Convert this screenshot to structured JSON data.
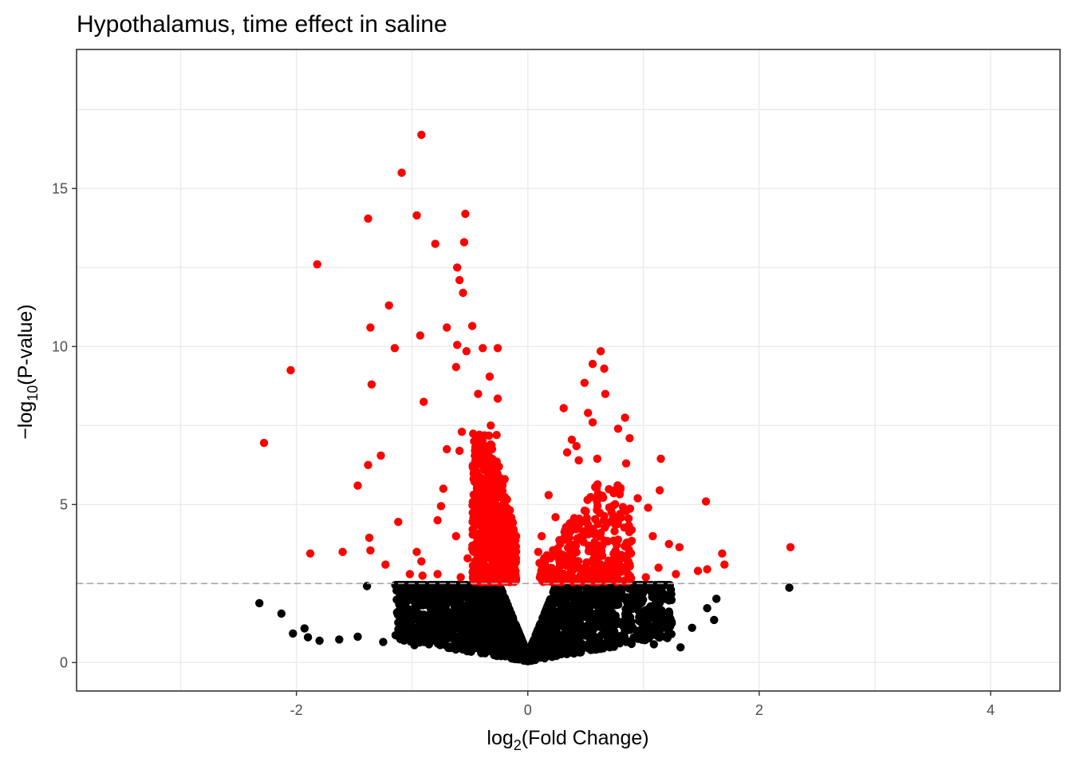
{
  "chart_data": {
    "type": "scatter",
    "title": "Hypothalamus, time effect in saline",
    "xlabel": {
      "prefix": "log",
      "subscript": "2",
      "suffix": "(Fold Change)"
    },
    "ylabel": {
      "prefix": "−log",
      "subscript": "10",
      "suffix": "(P-value)"
    },
    "xlim": [
      -3.9,
      4.6
    ],
    "ylim": [
      -0.9,
      19.4
    ],
    "x_ticks": [
      -2,
      0,
      2,
      4
    ],
    "y_ticks": [
      0,
      5,
      10,
      15
    ],
    "x_tick_labels": [
      "-2",
      "0",
      "2",
      "4"
    ],
    "y_tick_labels": [
      "0",
      "5",
      "10",
      "15"
    ],
    "grid": true,
    "legend": "none",
    "threshold_y": 2.5,
    "colors": {
      "significant": "#ff0000",
      "not_significant": "#000000",
      "threshold": "#a6a6a6",
      "grid": "#ebebeb",
      "panel_border": "#333333"
    },
    "series": [
      {
        "role": "significant",
        "points": [
          [
            -0.92,
            16.7
          ],
          [
            -1.09,
            15.5
          ],
          [
            -0.54,
            14.2
          ],
          [
            -0.96,
            14.15
          ],
          [
            -1.38,
            14.05
          ],
          [
            -0.55,
            13.3
          ],
          [
            -0.8,
            13.25
          ],
          [
            -1.82,
            12.6
          ],
          [
            -0.61,
            12.5
          ],
          [
            -0.59,
            12.1
          ],
          [
            -0.56,
            11.7
          ],
          [
            -1.2,
            11.3
          ],
          [
            -0.48,
            10.65
          ],
          [
            -1.36,
            10.6
          ],
          [
            -0.7,
            10.6
          ],
          [
            -0.93,
            10.35
          ],
          [
            -0.61,
            10.05
          ],
          [
            -1.15,
            9.95
          ],
          [
            -0.39,
            9.95
          ],
          [
            -0.26,
            9.95
          ],
          [
            -0.53,
            9.85
          ],
          [
            -0.62,
            9.35
          ],
          [
            -2.05,
            9.25
          ],
          [
            -0.33,
            9.05
          ],
          [
            -1.35,
            8.8
          ],
          [
            -0.43,
            8.5
          ],
          [
            -0.26,
            8.35
          ],
          [
            -0.9,
            8.25
          ],
          [
            -0.32,
            7.5
          ],
          [
            -0.27,
            7.2
          ],
          [
            -0.57,
            7.3
          ],
          [
            -2.28,
            6.95
          ],
          [
            -0.42,
            6.7
          ],
          [
            -0.59,
            6.7
          ],
          [
            -0.7,
            6.75
          ],
          [
            -1.27,
            6.55
          ],
          [
            -1.38,
            6.25
          ],
          [
            -1.47,
            5.6
          ],
          [
            -0.73,
            5.5
          ],
          [
            -0.75,
            4.95
          ],
          [
            -0.78,
            4.5
          ],
          [
            -1.12,
            4.45
          ],
          [
            -1.37,
            3.95
          ],
          [
            -1.36,
            3.55
          ],
          [
            -1.88,
            3.45
          ],
          [
            -1.6,
            3.5
          ],
          [
            -0.96,
            3.5
          ],
          [
            -0.92,
            3.2
          ],
          [
            -1.23,
            3.1
          ],
          [
            -0.78,
            2.8
          ],
          [
            -0.91,
            2.75
          ],
          [
            -1.02,
            2.8
          ],
          [
            -0.58,
            2.7
          ],
          [
            -0.45,
            2.9
          ],
          [
            0.63,
            9.85
          ],
          [
            0.56,
            9.45
          ],
          [
            0.66,
            9.3
          ],
          [
            0.49,
            8.85
          ],
          [
            0.67,
            8.5
          ],
          [
            0.31,
            8.05
          ],
          [
            0.52,
            7.9
          ],
          [
            0.56,
            7.6
          ],
          [
            0.84,
            7.75
          ],
          [
            0.78,
            7.4
          ],
          [
            0.38,
            7.05
          ],
          [
            0.42,
            6.85
          ],
          [
            0.88,
            7.1
          ],
          [
            0.34,
            6.65
          ],
          [
            0.44,
            6.4
          ],
          [
            0.6,
            6.45
          ],
          [
            1.15,
            6.45
          ],
          [
            0.85,
            6.3
          ],
          [
            1.14,
            5.45
          ],
          [
            1.54,
            5.1
          ],
          [
            0.95,
            5.2
          ],
          [
            1.04,
            4.9
          ],
          [
            0.59,
            5.2
          ],
          [
            1.08,
            4.0
          ],
          [
            1.22,
            3.75
          ],
          [
            1.31,
            3.65
          ],
          [
            1.68,
            3.45
          ],
          [
            1.7,
            3.1
          ],
          [
            2.27,
            3.65
          ],
          [
            1.55,
            2.95
          ],
          [
            1.47,
            2.9
          ],
          [
            1.28,
            2.8
          ],
          [
            1.13,
            3.0
          ],
          [
            0.09,
            3.5
          ],
          [
            0.12,
            4.0
          ],
          [
            0.18,
            5.3
          ],
          [
            0.24,
            4.6
          ],
          [
            0.48,
            4.0
          ],
          [
            0.76,
            3.4
          ],
          [
            0.88,
            3.1
          ],
          [
            1.02,
            2.7
          ],
          [
            -0.25,
            6.2
          ],
          [
            -0.2,
            5.8
          ],
          [
            -0.31,
            5.6
          ],
          [
            -0.36,
            5.1
          ],
          [
            -0.22,
            4.7
          ],
          [
            -0.18,
            4.2
          ],
          [
            -0.4,
            4.3
          ],
          [
            -0.28,
            3.8
          ],
          [
            -0.48,
            3.6
          ],
          [
            -0.12,
            3.2
          ],
          [
            -0.35,
            3.0
          ],
          [
            -0.52,
            3.3
          ],
          [
            -0.15,
            2.8
          ],
          [
            -0.62,
            4.0
          ],
          [
            -0.44,
            5.4
          ]
        ]
      },
      {
        "role": "not_significant",
        "points": [
          [
            -2.32,
            1.88
          ],
          [
            -2.13,
            1.55
          ],
          [
            -2.03,
            0.92
          ],
          [
            -1.93,
            1.08
          ],
          [
            -1.9,
            0.8
          ],
          [
            -1.8,
            0.69
          ],
          [
            -1.63,
            0.73
          ],
          [
            -1.47,
            0.82
          ],
          [
            -1.39,
            2.42
          ],
          [
            -1.25,
            0.65
          ],
          [
            -1.11,
            1.0
          ],
          [
            -1.05,
            0.75
          ],
          [
            -0.98,
            0.55
          ],
          [
            2.26,
            2.37
          ],
          [
            1.63,
            2.02
          ],
          [
            1.55,
            1.72
          ],
          [
            1.32,
            0.48
          ],
          [
            1.09,
            0.58
          ],
          [
            1.42,
            1.1
          ],
          [
            1.61,
            1.35
          ]
        ]
      }
    ]
  }
}
